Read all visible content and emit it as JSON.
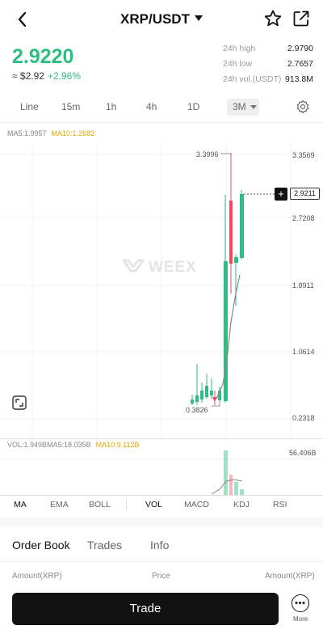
{
  "header": {
    "pair": "XRP/USDT"
  },
  "ticker": {
    "last_price": "2.9220",
    "fiat_price": "≈ $2.92",
    "change": "+2.96%",
    "stats": [
      {
        "label": "24h high",
        "value": "2.9790"
      },
      {
        "label": "24h low",
        "value": "2.7657"
      },
      {
        "label": "24h vol.(USDT)",
        "value": "913.8M"
      }
    ]
  },
  "timeframes": [
    "Line",
    "15m",
    "1h",
    "4h",
    "1D"
  ],
  "timeframe_selected": "3M",
  "chart": {
    "ma_legend": {
      "ma5": "MA5:1.9957",
      "ma10": "MA10:1.2682"
    },
    "y_ticks": [
      "3.3569",
      "2.7208",
      "1.8911",
      "1.0614",
      "0.2318"
    ],
    "current_price": "2.9211",
    "high_label": "3.3996",
    "low_label": "0.3826",
    "watermark": "WEEX",
    "colors": {
      "up": "#2ebd85",
      "down": "#f6465d",
      "ma5": "#888888",
      "ma10": "#e0a800"
    }
  },
  "volume": {
    "legend_vol": "VOL:1.949B",
    "legend_ma5": "MA5:18.035B",
    "legend_ma10": "MA10:9.112B",
    "max_label": "56.406B"
  },
  "chart_data": {
    "type": "candlestick",
    "y_axis_ticks": [
      3.3569,
      2.7208,
      1.8911,
      1.0614,
      0.2318
    ],
    "candles_estimated": [
      {
        "o": 0.48,
        "h": 0.64,
        "l": 0.4,
        "c": 0.52
      },
      {
        "o": 0.5,
        "h": 0.8,
        "l": 0.45,
        "c": 0.55
      },
      {
        "o": 0.53,
        "h": 0.65,
        "l": 0.47,
        "c": 0.58
      },
      {
        "o": 0.56,
        "h": 0.7,
        "l": 0.5,
        "c": 0.62
      },
      {
        "o": 0.6,
        "h": 0.72,
        "l": 0.52,
        "c": 0.58
      },
      {
        "o": 0.58,
        "h": 0.68,
        "l": 0.38,
        "c": 0.52
      },
      {
        "o": 0.52,
        "h": 0.66,
        "l": 0.45,
        "c": 0.6
      },
      {
        "o": 0.6,
        "h": 0.8,
        "l": 0.55,
        "c": 0.7
      },
      {
        "o": 0.7,
        "h": 2.56,
        "l": 0.6,
        "c": 2.45
      },
      {
        "o": 2.45,
        "h": 3.4,
        "l": 1.9,
        "c": 2.35
      },
      {
        "o": 2.38,
        "h": 2.6,
        "l": 1.8,
        "c": 2.48
      },
      {
        "o": 2.5,
        "h": 3.0,
        "l": 2.4,
        "c": 2.92
      }
    ],
    "volume_max": "56.406B"
  },
  "indicators": [
    "MA",
    "EMA",
    "BOLL",
    "VOL",
    "MACD",
    "KDJ",
    "RSI"
  ],
  "bottom_tabs": [
    "Order Book",
    "Trades",
    "Info"
  ],
  "orderbook_columns": {
    "amount_left": "Amount(XRP)",
    "price": "Price",
    "amount_right": "Amount(XRP)"
  },
  "actions": {
    "trade": "Trade",
    "more": "More"
  }
}
